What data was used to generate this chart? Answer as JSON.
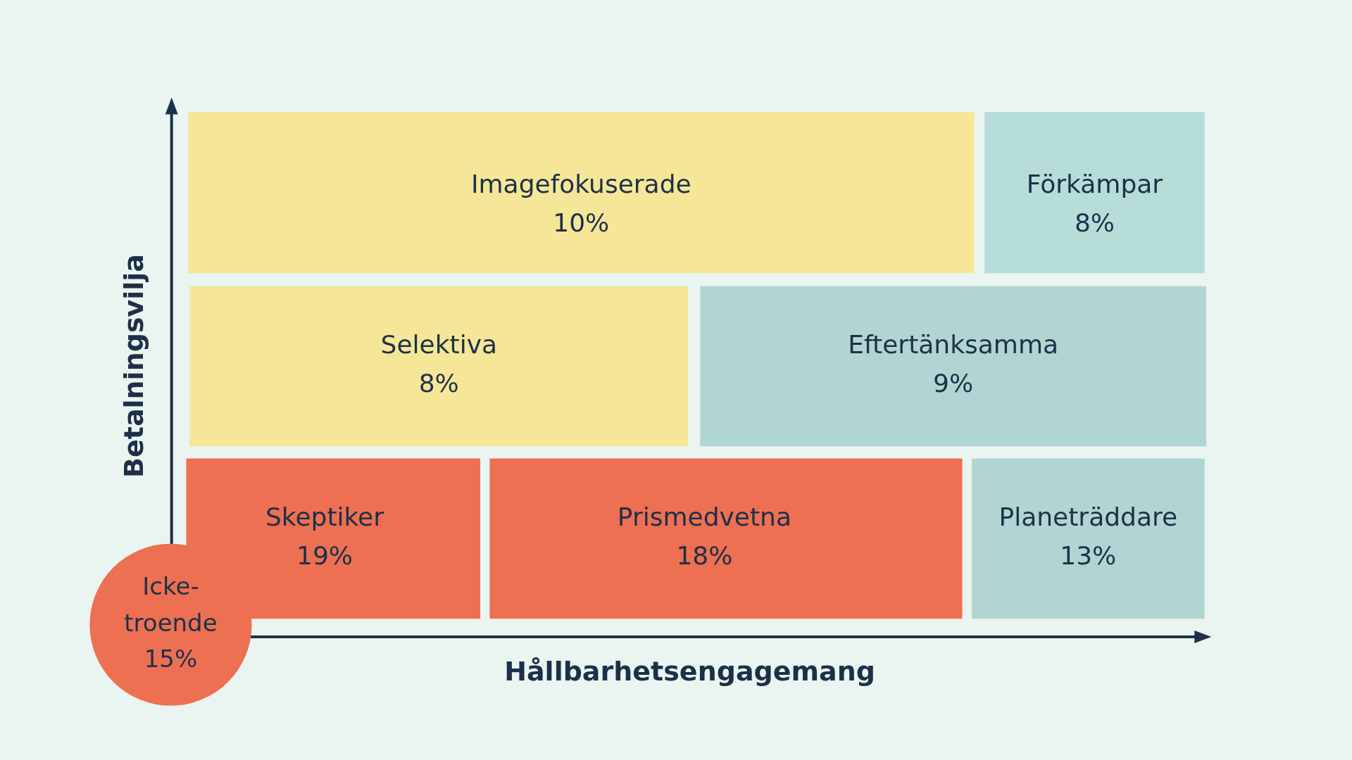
{
  "chart_data": {
    "type": "other",
    "xlabel": "Hållbarhetsengagemang",
    "ylabel": "Betalningsvilja",
    "categories": [
      "Imagefokuserade",
      "Förkämpar",
      "Selektiva",
      "Eftertänksamma",
      "Skeptiker",
      "Prismedvetna",
      "Planeträddare",
      "Icke-troende"
    ],
    "values": [
      10,
      8,
      8,
      9,
      19,
      18,
      13,
      15
    ],
    "value_labels": [
      "10%",
      "8%",
      "8%",
      "9%",
      "19%",
      "18%",
      "13%",
      "15%"
    ],
    "colors": [
      "#f5e797",
      "#b7ddd9",
      "#f5e797",
      "#b1d5d2",
      "#ed7052",
      "#ed7052",
      "#b1d5d2",
      "#ed7052"
    ]
  }
}
